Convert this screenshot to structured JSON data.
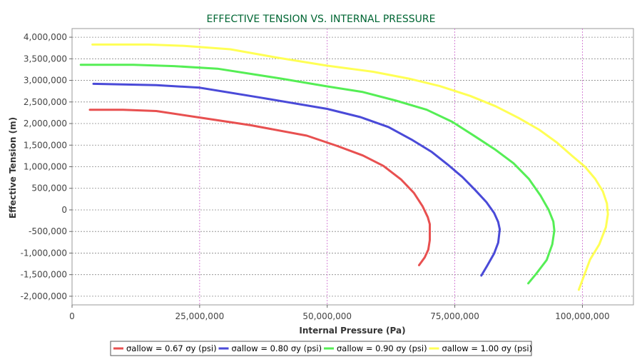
{
  "chart_data": {
    "type": "line",
    "title": "EFFECTIVE TENSION VS. INTERNAL PRESSURE",
    "xlabel": "Internal Pressure (Pa)",
    "ylabel": "Effective Tension (m)",
    "xlim": [
      0,
      110000000
    ],
    "ylim": [
      -2200000,
      4200000
    ],
    "x_ticks": [
      0,
      25000000,
      50000000,
      75000000,
      100000000
    ],
    "x_tick_labels": [
      "0",
      "25,000,000",
      "50,000,000",
      "75,000,000",
      "100,000,000"
    ],
    "y_ticks": [
      4000000,
      3500000,
      3000000,
      2500000,
      2000000,
      1500000,
      1000000,
      500000,
      0,
      -500000,
      -1000000,
      -1500000,
      -2000000
    ],
    "y_tick_labels": [
      "4,000,000",
      "3,500,000",
      "3,000,000",
      "2,500,000",
      "2,000,000",
      "1,500,000",
      "1,000,000",
      "500,000",
      "0",
      "-500,000",
      "-1,000,000",
      "-1,500,000",
      "-2,000,000"
    ],
    "grid": true,
    "legend_position": "bottom",
    "series": [
      {
        "name": "σallow = 0.67 σy  (psi)",
        "color": "#e85050",
        "x": [
          3500000,
          10000000,
          16500000,
          25000000,
          35000000,
          46000000,
          52000000,
          57000000,
          61000000,
          64500000,
          67000000,
          68700000,
          69700000,
          70100000,
          70100000,
          69800000,
          69100000,
          68000000
        ],
        "y": [
          2320000,
          2320000,
          2290000,
          2140000,
          1960000,
          1720000,
          1480000,
          1260000,
          1020000,
          700000,
          390000,
          80000,
          -170000,
          -330000,
          -700000,
          -920000,
          -1100000,
          -1280000
        ]
      },
      {
        "name": "σallow = 0.80 σy  (psi)",
        "color": "#4a4ad8",
        "x": [
          4200000,
          16500000,
          25000000,
          37000000,
          50000000,
          56500000,
          62000000,
          66500000,
          70500000,
          73500000,
          76500000,
          79000000,
          81200000,
          82700000,
          83500000,
          83800000,
          83500000,
          82700000,
          81300000,
          80200000
        ],
        "y": [
          2920000,
          2890000,
          2830000,
          2600000,
          2340000,
          2150000,
          1920000,
          1630000,
          1340000,
          1060000,
          760000,
          460000,
          180000,
          -70000,
          -280000,
          -450000,
          -760000,
          -1010000,
          -1300000,
          -1520000
        ]
      },
      {
        "name": "σallow = 0.90 σy  (psi)",
        "color": "#55ee55",
        "x": [
          1700000,
          12000000,
          20000000,
          28500000,
          41000000,
          50000000,
          57000000,
          63500000,
          69500000,
          74500000,
          79000000,
          83000000,
          86500000,
          89500000,
          91800000,
          93400000,
          94300000,
          94500000,
          94100000,
          93000000,
          91000000,
          89400000
        ],
        "y": [
          3360000,
          3360000,
          3330000,
          3270000,
          3040000,
          2860000,
          2730000,
          2530000,
          2320000,
          2040000,
          1700000,
          1390000,
          1080000,
          720000,
          330000,
          0,
          -270000,
          -480000,
          -800000,
          -1160000,
          -1470000,
          -1700000
        ]
      },
      {
        "name": "σallow = 1.00 σy  (psi)",
        "color": "#ffff55",
        "x": [
          4000000,
          15000000,
          22000000,
          31000000,
          40000000,
          50000000,
          59000000,
          66000000,
          72000000,
          78000000,
          83000000,
          87500000,
          91500000,
          95000000,
          98000000,
          100500000,
          102500000,
          104000000,
          104800000,
          105000000,
          104600000,
          103300000,
          101500000,
          99300000
        ],
        "y": [
          3830000,
          3830000,
          3800000,
          3720000,
          3530000,
          3340000,
          3200000,
          3040000,
          2870000,
          2640000,
          2400000,
          2130000,
          1860000,
          1560000,
          1250000,
          1000000,
          720000,
          430000,
          150000,
          -100000,
          -400000,
          -800000,
          -1150000,
          -1850000
        ]
      }
    ]
  }
}
